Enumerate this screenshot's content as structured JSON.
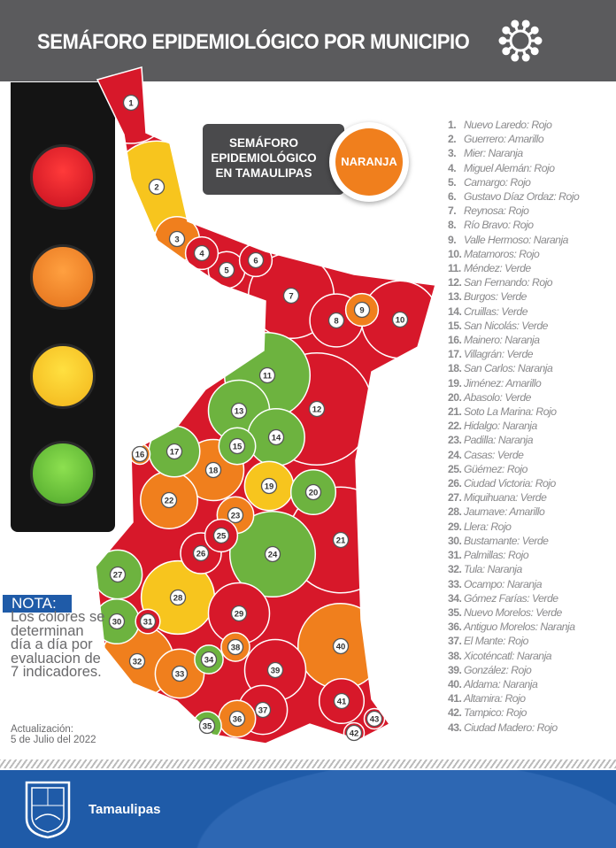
{
  "header": {
    "title": "SEMÁFORO EPIDEMIOLÓGICO POR MUNICIPIO",
    "icon": "virus-icon"
  },
  "colors": {
    "Rojo": "#d7182a",
    "Naranja": "#f07f1d",
    "Amarillo": "#f7c51e",
    "Verde": "#6db33f"
  },
  "traffic_light": [
    "Rojo",
    "Naranja",
    "Amarillo",
    "Verde"
  ],
  "state_status": {
    "line1": "SEMÁFORO",
    "line2": "EPIDEMIOLÓGICO",
    "line3": "EN TAMAULIPAS",
    "value": "NARANJA"
  },
  "municipios": [
    {
      "n": "1.",
      "name": "Nuevo Laredo",
      "status": "Rojo"
    },
    {
      "n": "2.",
      "name": "Guerrero",
      "status": "Amarillo"
    },
    {
      "n": "3.",
      "name": "Mier",
      "status": "Naranja"
    },
    {
      "n": "4.",
      "name": "Miguel Alemán",
      "status": "Rojo"
    },
    {
      "n": "5.",
      "name": "Camargo",
      "status": "Rojo"
    },
    {
      "n": "6.",
      "name": "Gustavo Díaz Ordaz",
      "status": "Rojo"
    },
    {
      "n": "7.",
      "name": "Reynosa",
      "status": "Rojo"
    },
    {
      "n": "8.",
      "name": "Río Bravo",
      "status": "Rojo"
    },
    {
      "n": "9.",
      "name": "Valle Hermoso",
      "status": "Naranja"
    },
    {
      "n": "10.",
      "name": "Matamoros",
      "status": "Rojo"
    },
    {
      "n": "11.",
      "name": "Méndez",
      "status": "Verde"
    },
    {
      "n": "12.",
      "name": "San Fernando",
      "status": "Rojo"
    },
    {
      "n": "13.",
      "name": "Burgos",
      "status": "Verde"
    },
    {
      "n": "14.",
      "name": "Cruillas",
      "status": "Verde"
    },
    {
      "n": "15.",
      "name": "San Nicolás",
      "status": "Verde"
    },
    {
      "n": "16.",
      "name": "Mainero",
      "status": "Naranja"
    },
    {
      "n": "17.",
      "name": "Villagrán",
      "status": "Verde"
    },
    {
      "n": "18.",
      "name": "San Carlos",
      "status": "Naranja"
    },
    {
      "n": "19.",
      "name": "Jiménez",
      "status": "Amarillo"
    },
    {
      "n": "20.",
      "name": "Abasolo",
      "status": "Verde"
    },
    {
      "n": "21.",
      "name": "Soto La Marina",
      "status": "Rojo"
    },
    {
      "n": "22.",
      "name": "Hidalgo",
      "status": "Naranja"
    },
    {
      "n": "23.",
      "name": "Padilla",
      "status": "Naranja"
    },
    {
      "n": "24.",
      "name": "Casas",
      "status": "Verde"
    },
    {
      "n": "25.",
      "name": "Güémez",
      "status": "Rojo"
    },
    {
      "n": "26.",
      "name": "Ciudad Victoria",
      "status": "Rojo"
    },
    {
      "n": "27.",
      "name": "Miquihuana",
      "status": "Verde"
    },
    {
      "n": "28.",
      "name": "Jaumave",
      "status": "Amarillo"
    },
    {
      "n": "29.",
      "name": "Llera",
      "status": "Rojo"
    },
    {
      "n": "30.",
      "name": "Bustamante",
      "status": "Verde"
    },
    {
      "n": "31.",
      "name": "Palmillas",
      "status": "Rojo"
    },
    {
      "n": "32.",
      "name": "Tula",
      "status": "Naranja"
    },
    {
      "n": "33.",
      "name": "Ocampo",
      "status": "Naranja"
    },
    {
      "n": "34.",
      "name": "Gómez Farías",
      "status": "Verde"
    },
    {
      "n": "35.",
      "name": "Nuevo Morelos",
      "status": "Verde"
    },
    {
      "n": "36.",
      "name": "Antiguo Morelos",
      "status": "Naranja"
    },
    {
      "n": "37.",
      "name": "El Mante",
      "status": "Rojo"
    },
    {
      "n": "38.",
      "name": "Xicoténcatl",
      "status": "Naranja"
    },
    {
      "n": "39.",
      "name": "González",
      "status": "Rojo"
    },
    {
      "n": "40.",
      "name": "Aldama",
      "status": "Naranja"
    },
    {
      "n": "41.",
      "name": "Altamira",
      "status": "Rojo"
    },
    {
      "n": "42.",
      "name": "Tampico",
      "status": "Rojo"
    },
    {
      "n": "43.",
      "name": "Ciudad Madero",
      "status": "Rojo"
    }
  ],
  "nota": {
    "label": "NOTA:",
    "text": "Los colores se determinan día a día por evaluacion de  7 indicadores."
  },
  "update": {
    "label": "Actualización:",
    "date": "5 de Julio del 2022"
  },
  "footer": {
    "brand": "Tamaulipas",
    "logo": "tamaulipas-coat-of-arms"
  }
}
